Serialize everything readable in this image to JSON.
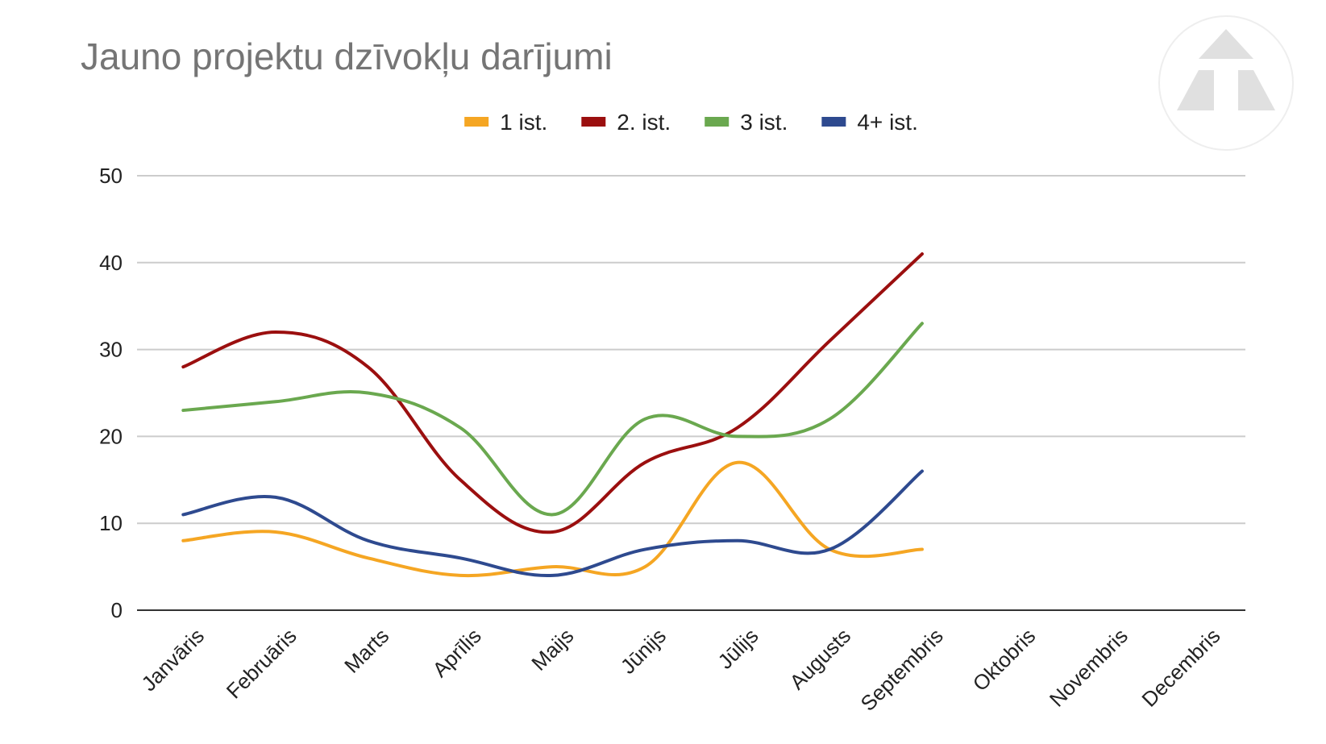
{
  "chart_data": {
    "type": "line",
    "title": "Jauno projektu dzīvokļu darījumi",
    "xlabel": "",
    "ylabel": "",
    "categories": [
      "Janvāris",
      "Februāris",
      "Marts",
      "Aprīlis",
      "Maijs",
      "Jūnijs",
      "Jūlijs",
      "Augusts",
      "Septembris",
      "Oktobris",
      "Novembris",
      "Decembris"
    ],
    "ylim": [
      0,
      50
    ],
    "yticks": [
      0,
      10,
      20,
      30,
      40,
      50
    ],
    "grid": true,
    "smooth": true,
    "legend_position": "top",
    "series": [
      {
        "name": "1 ist.",
        "color": "#f5a623",
        "values": [
          8,
          9,
          6,
          4,
          5,
          5,
          17,
          7,
          7,
          null,
          null,
          null
        ]
      },
      {
        "name": "2. ist.",
        "color": "#9b0f0f",
        "values": [
          28,
          32,
          28,
          15,
          9,
          17,
          21,
          31,
          41,
          null,
          null,
          null
        ]
      },
      {
        "name": "3 ist.",
        "color": "#6aa84f",
        "values": [
          23,
          24,
          25,
          21,
          11,
          22,
          20,
          22,
          33,
          null,
          null,
          null
        ]
      },
      {
        "name": "4+ ist.",
        "color": "#2e4a8f",
        "values": [
          11,
          13,
          8,
          6,
          4,
          7,
          8,
          7,
          16,
          null,
          null,
          null
        ]
      }
    ]
  },
  "logo": {
    "icon": "triangle-logo-icon",
    "color": "#e0e0e0"
  }
}
